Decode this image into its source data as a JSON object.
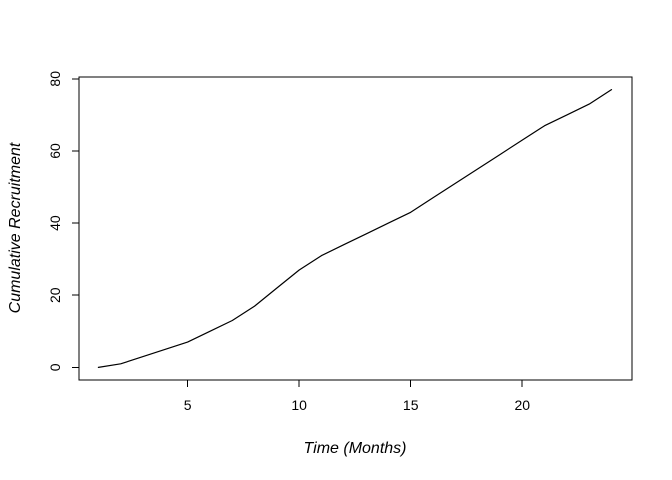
{
  "figure": {
    "background": "#ffffff",
    "line_color": "#000000",
    "axis_color": "#000000",
    "text_color": "#000000"
  },
  "chart_data": {
    "type": "line",
    "title": "",
    "xlabel": "Time (Months)",
    "ylabel": "Cumulative Recruitment",
    "x": [
      1,
      2,
      3,
      4,
      5,
      6,
      7,
      8,
      9,
      10,
      11,
      12,
      13,
      14,
      15,
      16,
      17,
      18,
      19,
      20,
      21,
      22,
      23,
      24
    ],
    "series": [
      {
        "name": "cumulative-recruitment",
        "values": [
          0,
          1,
          3,
          5,
          7,
          10,
          13,
          17,
          22,
          27,
          31,
          34,
          37,
          40,
          43,
          47,
          51,
          55,
          59,
          63,
          67,
          70,
          73,
          77
        ]
      }
    ],
    "x_ticks": [
      5,
      10,
      15,
      20
    ],
    "y_ticks": [
      0,
      20,
      40,
      60,
      80
    ],
    "xlim": [
      0.13,
      24.92
    ],
    "ylim": [
      -3.5,
      80.5
    ],
    "grid": false,
    "legend": "none"
  }
}
